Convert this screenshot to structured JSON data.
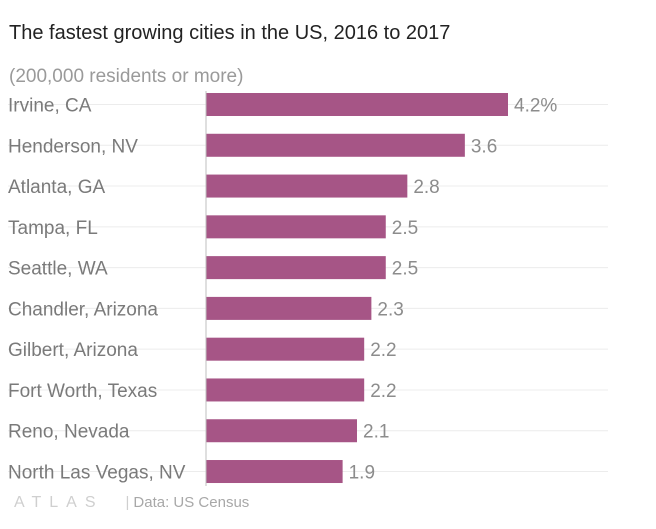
{
  "brand": "ATLAS",
  "source": "Data: US Census",
  "colors": {
    "bar": "#a65586",
    "grid": "#ececec",
    "axis": "#bfbfbf",
    "label": "#7a7a7a",
    "value": "#8c8c8c"
  },
  "chart_data": {
    "type": "bar",
    "orientation": "horizontal",
    "title": "The fastest growing cities in the US, 2016 to 2017",
    "subtitle": "(200,000 residents or more)",
    "categories": [
      "Irvine, CA",
      "Henderson, NV",
      "Atlanta, GA",
      "Tampa, FL",
      "Seattle, WA",
      "Chandler, Arizona",
      "Gilbert, Arizona",
      "Fort Worth, Texas",
      "Reno, Nevada",
      "North Las Vegas, NV"
    ],
    "values": [
      4.2,
      3.6,
      2.8,
      2.5,
      2.5,
      2.3,
      2.2,
      2.2,
      2.1,
      1.9
    ],
    "data_labels": [
      "4.2%",
      "3.6",
      "2.8",
      "2.5",
      "2.5",
      "2.3",
      "2.2",
      "2.2",
      "2.1",
      "1.9"
    ],
    "unit": "%",
    "xlim": [
      0,
      4.2
    ],
    "grid": true
  }
}
